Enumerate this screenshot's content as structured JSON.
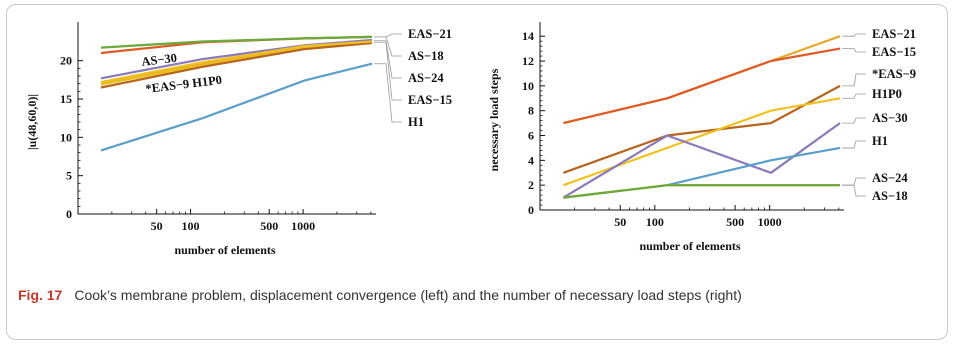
{
  "caption": {
    "label": "Fig. 17",
    "text": "Cook’s membrane problem, displacement convergence (left) and the number of necessary load steps (right)"
  },
  "chart_data": [
    {
      "type": "line",
      "xscale": "log",
      "xlabel": "number of elements",
      "ylabel": "|u(48,60,0)|",
      "xlim": [
        10,
        4096
      ],
      "ylim": [
        0,
        24
      ],
      "xticks": [
        50,
        100,
        500,
        1000
      ],
      "xtick_labels": [
        "50",
        "100",
        "500",
        "1000"
      ],
      "yticks": [
        0,
        5,
        10,
        15,
        20
      ],
      "ytick_labels": [
        "0",
        "5",
        "10",
        "15",
        "20"
      ],
      "series": [
        {
          "name": "EAS−21",
          "color": "#e05a28",
          "x": [
            16,
            128,
            1024,
            4096
          ],
          "y": [
            21.0,
            22.4,
            22.9,
            23.1
          ]
        },
        {
          "name": "AS−18",
          "color": "#6aaa3a",
          "x": [
            16,
            128,
            1024,
            4096
          ],
          "y": [
            21.7,
            22.5,
            22.9,
            23.1
          ]
        },
        {
          "name": "AS−24",
          "color": "#e8a82c",
          "x": [
            16,
            128,
            1024,
            4096
          ],
          "y": [
            17.0,
            19.6,
            21.8,
            22.6
          ]
        },
        {
          "name": "EAS−15",
          "color": "#e8c020",
          "x": [
            16,
            128,
            1024,
            4096
          ],
          "y": [
            16.9,
            19.4,
            21.6,
            22.4
          ]
        },
        {
          "name": "AS−30",
          "color": "#8c7ab8",
          "x": [
            16,
            128,
            1024,
            4096
          ],
          "y": [
            17.7,
            20.2,
            22.0,
            22.7
          ]
        },
        {
          "name": "*EAS−9",
          "color": "#b5651d",
          "x": [
            16,
            128,
            1024,
            4096
          ],
          "y": [
            16.5,
            19.2,
            21.5,
            22.3
          ]
        },
        {
          "name": "H1P0",
          "color": "#f0c020",
          "x": [
            16,
            128,
            1024,
            4096
          ],
          "y": [
            17.2,
            19.8,
            21.9,
            22.5
          ]
        },
        {
          "name": "H1",
          "color": "#5b9ec9",
          "x": [
            16,
            128,
            1024,
            4096
          ],
          "y": [
            8.3,
            12.5,
            17.4,
            19.6
          ]
        }
      ],
      "legend": [
        "EAS−21",
        "AS−18",
        "AS−24",
        "EAS−15",
        "H1"
      ],
      "inline_labels": [
        "AS−30",
        "*EAS−9 H1P0"
      ]
    },
    {
      "type": "line",
      "xscale": "log",
      "xlabel": "number of elements",
      "ylabel": "necessary load steps",
      "xlim": [
        10,
        4096
      ],
      "ylim": [
        0,
        14.5
      ],
      "xticks": [
        50,
        100,
        500,
        1000
      ],
      "xtick_labels": [
        "50",
        "100",
        "500",
        "1000"
      ],
      "yticks": [
        0,
        2,
        4,
        6,
        8,
        10,
        12,
        14
      ],
      "ytick_labels": [
        "0",
        "2",
        "4",
        "6",
        "8",
        "10",
        "12",
        "14"
      ],
      "series": [
        {
          "name": "EAS−21",
          "color": "#e8a82c",
          "x": [
            16,
            128,
            1024,
            4096
          ],
          "y": [
            7,
            9,
            12,
            14
          ]
        },
        {
          "name": "EAS−15",
          "color": "#e05a28",
          "x": [
            16,
            128,
            1024,
            4096
          ],
          "y": [
            7,
            9,
            12,
            13
          ]
        },
        {
          "name": "*EAS−9",
          "color": "#b5651d",
          "x": [
            16,
            128,
            1024,
            4096
          ],
          "y": [
            3,
            6,
            7,
            10
          ]
        },
        {
          "name": "H1P0",
          "color": "#f0c020",
          "x": [
            16,
            128,
            1024,
            4096
          ],
          "y": [
            2,
            5,
            8,
            9
          ]
        },
        {
          "name": "AS−30",
          "color": "#8c7ab8",
          "x": [
            16,
            128,
            1024,
            4096
          ],
          "y": [
            1,
            6,
            3,
            7
          ]
        },
        {
          "name": "H1",
          "color": "#5b9ec9",
          "x": [
            16,
            128,
            1024,
            4096
          ],
          "y": [
            1,
            2,
            4,
            5
          ]
        },
        {
          "name": "AS−24",
          "color": "#e8a82c",
          "x": [
            16,
            128,
            1024,
            4096
          ],
          "y": [
            1,
            2,
            2,
            2
          ]
        },
        {
          "name": "AS−18",
          "color": "#6aaa3a",
          "x": [
            16,
            128,
            1024,
            4096
          ],
          "y": [
            1,
            2,
            2,
            2
          ]
        }
      ],
      "legend": [
        "EAS−21",
        "EAS−15",
        "*EAS−9",
        "H1P0",
        "AS−30",
        "H1",
        "AS−24",
        "AS−18"
      ]
    }
  ]
}
